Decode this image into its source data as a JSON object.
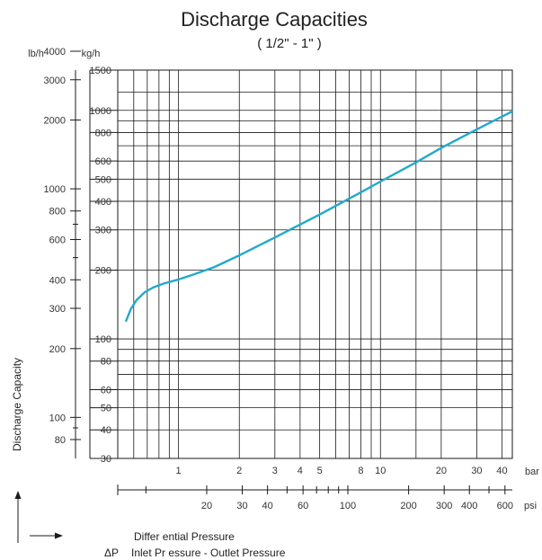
{
  "chart_data": {
    "type": "line",
    "title": "Discharge Capacities",
    "subtitle": "( 1/2\" -  1\" )",
    "ylabel": "Discharge Capacity",
    "y_unit_kg": "kg/h",
    "y_unit_lb": "lb/h",
    "x_unit_bar": "bar",
    "x_unit_psi": "psi",
    "xlabel_line1": "Differ ential Pressure",
    "xlabel_line2_symbol": "ΔP",
    "xlabel_line2": "Inlet Pr essure  -  Outlet Pressure",
    "x_scale": "log",
    "y_scale": "log",
    "xlim_bar": [
      0.5,
      45
    ],
    "ylim_kg": [
      30,
      1500
    ],
    "grid": true,
    "kg_ticks": [
      {
        "v": 30,
        "label": "30"
      },
      {
        "v": 40,
        "label": "40"
      },
      {
        "v": 50,
        "label": "50"
      },
      {
        "v": 60,
        "label": "60"
      },
      {
        "v": 80,
        "label": "80"
      },
      {
        "v": 100,
        "label": "100"
      },
      {
        "v": 200,
        "label": "200"
      },
      {
        "v": 300,
        "label": "300"
      },
      {
        "v": 400,
        "label": "400"
      },
      {
        "v": 500,
        "label": "500"
      },
      {
        "v": 600,
        "label": "600"
      },
      {
        "v": 800,
        "label": "800"
      },
      {
        "v": 1000,
        "label": "1000"
      },
      {
        "v": 1500,
        "label": "1500"
      }
    ],
    "kg_grid": [
      30,
      40,
      50,
      60,
      70,
      80,
      90,
      100,
      200,
      300,
      400,
      500,
      600,
      700,
      800,
      900,
      1000,
      1200,
      1500
    ],
    "lb_ticks": [
      {
        "v": 80,
        "label": "80"
      },
      {
        "v": 100,
        "label": "100"
      },
      {
        "v": 200,
        "label": "200"
      },
      {
        "v": 300,
        "label": "300"
      },
      {
        "v": 400,
        "label": "400"
      },
      {
        "v": 600,
        "label": "600"
      },
      {
        "v": 800,
        "label": "800"
      },
      {
        "v": 1000,
        "label": "1000"
      },
      {
        "v": 2000,
        "label": "2000"
      },
      {
        "v": 3000,
        "label": "3000"
      },
      {
        "v": 4000,
        "label": "4000"
      }
    ],
    "lb_minor": [
      90,
      500,
      700
    ],
    "bar_ticks": [
      {
        "v": 1,
        "label": "1"
      },
      {
        "v": 2,
        "label": "2"
      },
      {
        "v": 3,
        "label": "3"
      },
      {
        "v": 4,
        "label": "4"
      },
      {
        "v": 5,
        "label": "5"
      },
      {
        "v": 8,
        "label": "8"
      },
      {
        "v": 10,
        "label": "10"
      },
      {
        "v": 20,
        "label": "20"
      },
      {
        "v": 30,
        "label": "30"
      },
      {
        "v": 40,
        "label": "40"
      }
    ],
    "bar_grid": [
      0.6,
      0.7,
      0.8,
      0.9,
      1,
      2,
      3,
      4,
      5,
      6,
      7,
      8,
      9,
      10,
      15,
      20,
      30,
      40
    ],
    "psi_ticks": [
      {
        "v": 20,
        "label": "20"
      },
      {
        "v": 30,
        "label": "30"
      },
      {
        "v": 40,
        "label": "40"
      },
      {
        "v": 60,
        "label": "60"
      },
      {
        "v": 100,
        "label": "100"
      },
      {
        "v": 200,
        "label": "200"
      },
      {
        "v": 300,
        "label": "300"
      },
      {
        "v": 400,
        "label": "400"
      },
      {
        "v": 600,
        "label": "600"
      }
    ],
    "psi_minor": [
      10,
      50,
      70,
      80,
      90,
      500
    ],
    "series": [
      {
        "color": "#22a9cc",
        "x": [
          0.55,
          0.58,
          0.62,
          0.68,
          0.75,
          0.85,
          1.0,
          1.2,
          1.5,
          2.0,
          3.0,
          5.0,
          8.0,
          10,
          15,
          20,
          30,
          45
        ],
        "y": [
          120,
          135,
          148,
          160,
          168,
          175,
          182,
          192,
          206,
          232,
          278,
          350,
          438,
          488,
          592,
          685,
          826,
          990
        ]
      }
    ]
  }
}
